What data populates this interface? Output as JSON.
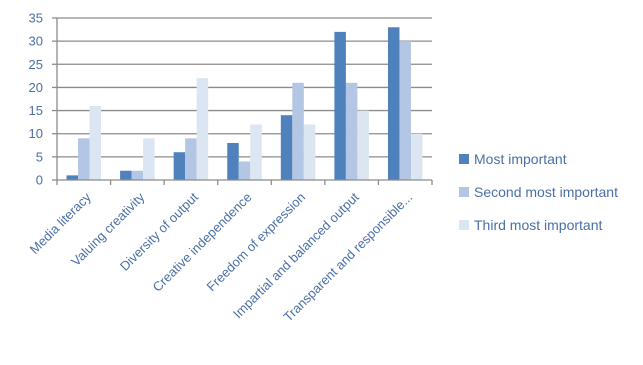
{
  "chart_data": {
    "type": "bar",
    "categories": [
      "Media literacy",
      "Valuing creativity",
      "Diversity of output",
      "Creative independence",
      "Freedom of expression",
      "Impartial and balanced output",
      "Transparent and responsible..."
    ],
    "series": [
      {
        "name": "Most important",
        "color": "#4f81bd",
        "values": [
          1,
          2,
          6,
          8,
          14,
          32,
          33
        ]
      },
      {
        "name": "Second most important",
        "color": "#b3c6e3",
        "values": [
          9,
          2,
          9,
          4,
          21,
          21,
          30
        ]
      },
      {
        "name": "Third most important",
        "color": "#dce6f2",
        "values": [
          16,
          9,
          22,
          12,
          12,
          15,
          10
        ]
      }
    ],
    "ylim": [
      0,
      35
    ],
    "yticks": [
      0,
      5,
      10,
      15,
      20,
      25,
      30,
      35
    ],
    "grid": true,
    "legend_position": "right"
  }
}
